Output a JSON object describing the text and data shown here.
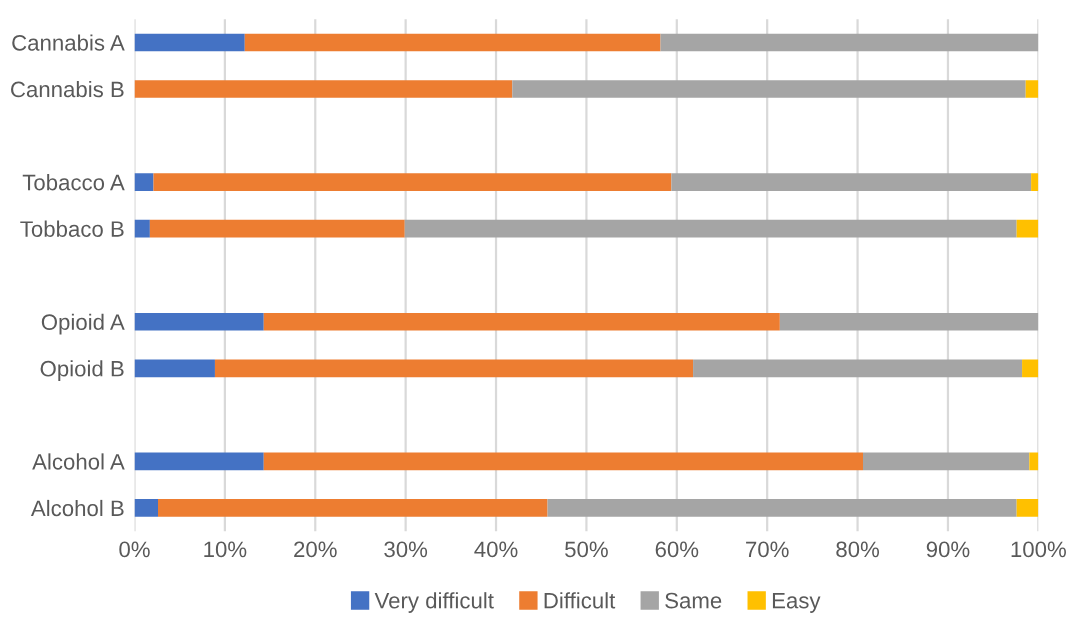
{
  "chart_data": {
    "type": "bar",
    "orientation": "horizontal",
    "stacked": true,
    "categories": [
      "Cannabis A",
      "Cannabis B",
      null,
      "Tobacco A",
      "Tobbaco B",
      null,
      "Opioid A",
      "Opioid B",
      null,
      "Alcohol A",
      "Alcohol B"
    ],
    "series": [
      {
        "name": "Very difficult",
        "color": "#4472c4",
        "values": [
          12.2,
          0,
          null,
          2.1,
          1.7,
          null,
          14.3,
          8.9,
          null,
          14.3,
          2.6
        ]
      },
      {
        "name": "Difficult",
        "color": "#ed7d31",
        "values": [
          46.0,
          41.8,
          null,
          57.3,
          28.2,
          null,
          57.1,
          52.9,
          null,
          66.3,
          43.1
        ]
      },
      {
        "name": "Same",
        "color": "#a5a5a5",
        "values": [
          41.8,
          56.8,
          null,
          39.8,
          67.7,
          null,
          28.6,
          36.4,
          null,
          18.4,
          51.9
        ]
      },
      {
        "name": "Easy",
        "color": "#ffc000",
        "values": [
          0,
          1.4,
          null,
          0.8,
          2.4,
          null,
          0,
          1.8,
          null,
          1.0,
          2.4
        ]
      }
    ],
    "xlim": [
      0,
      100
    ],
    "xticks": [
      {
        "value": 0,
        "label": "0%"
      },
      {
        "value": 10,
        "label": "10%"
      },
      {
        "value": 20,
        "label": "20%"
      },
      {
        "value": 30,
        "label": "30%"
      },
      {
        "value": 40,
        "label": "40%"
      },
      {
        "value": 50,
        "label": "50%"
      },
      {
        "value": 60,
        "label": "60%"
      },
      {
        "value": 70,
        "label": "70%"
      },
      {
        "value": 80,
        "label": "80%"
      },
      {
        "value": 90,
        "label": "90%"
      },
      {
        "value": 100,
        "label": "100%"
      }
    ],
    "grid": "x",
    "legend": "bottom"
  }
}
